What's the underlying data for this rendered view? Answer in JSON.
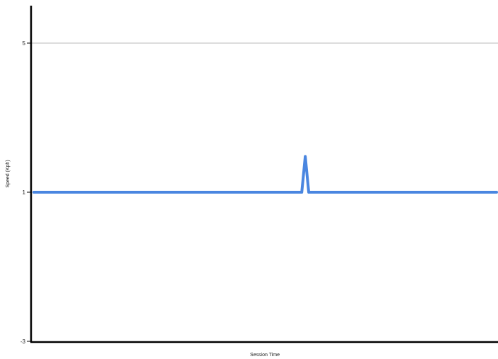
{
  "chart_data": {
    "type": "line",
    "xlabel": "Session Time",
    "ylabel": "Speed (Kph)",
    "ylim": [
      -3,
      5
    ],
    "yticks": [
      -3,
      1,
      5
    ],
    "ytick_labels": [
      "-3",
      "1",
      "5"
    ],
    "gridlines_y": [
      5
    ],
    "grid": "horizontal, at 5 only",
    "x_tick_labels_shown": false,
    "series": [
      {
        "color": "#4a86e0",
        "values": [
          1,
          1,
          1,
          1,
          1,
          1,
          1,
          1,
          1,
          1,
          1,
          1,
          1,
          1,
          1,
          1,
          1,
          1,
          1,
          1,
          1,
          1,
          1,
          1,
          1,
          1,
          1,
          1,
          1,
          1,
          1,
          1,
          1,
          1,
          1,
          1,
          1,
          1,
          1,
          1,
          1,
          1,
          1,
          1,
          1,
          1,
          1,
          1,
          1,
          1,
          1,
          1,
          1,
          1,
          1,
          1,
          1,
          1,
          1,
          1,
          1,
          1,
          1,
          1,
          1,
          1,
          1,
          1,
          1,
          1,
          1,
          1,
          1,
          1,
          1,
          1,
          1,
          1,
          1.96,
          1,
          1,
          1,
          1,
          1,
          1,
          1,
          1,
          1,
          1,
          1,
          1,
          1,
          1,
          1,
          1,
          1,
          1,
          1,
          1,
          1,
          1,
          1,
          1,
          1,
          1,
          1,
          1,
          1,
          1,
          1,
          1,
          1,
          1,
          1,
          1,
          1,
          1,
          1,
          1,
          1,
          1,
          1,
          1,
          1,
          1,
          1,
          1,
          1,
          1,
          1,
          1,
          1,
          1,
          1
        ]
      }
    ]
  }
}
